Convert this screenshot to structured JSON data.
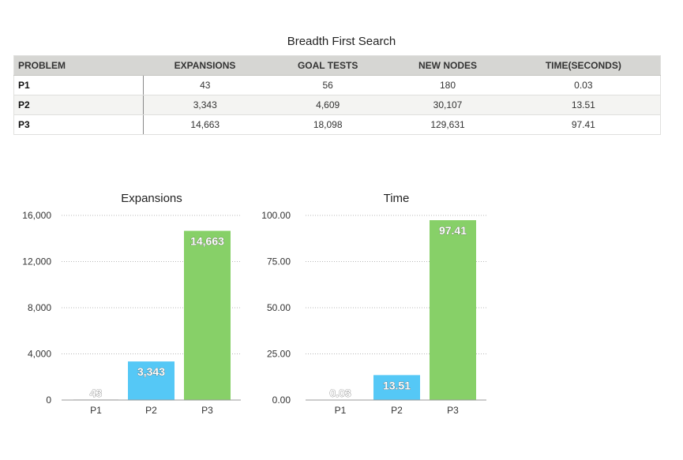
{
  "table": {
    "title": "Breadth First Search",
    "headers": [
      "PROBLEM",
      "EXPANSIONS",
      "GOAL TESTS",
      "NEW NODES",
      "TIME(SECONDS)"
    ],
    "rows": [
      [
        "P1",
        "43",
        "56",
        "180",
        "0.03"
      ],
      [
        "P2",
        "3,343",
        "4,609",
        "30,107",
        "13.51"
      ],
      [
        "P3",
        "14,663",
        "18,098",
        "129,631",
        "97.41"
      ]
    ]
  },
  "chart_data": [
    {
      "type": "bar",
      "title": "Expansions",
      "categories": [
        "P1",
        "P2",
        "P3"
      ],
      "values": [
        43,
        3343,
        14663
      ],
      "value_labels": [
        "43",
        "3,343",
        "14,663"
      ],
      "ylim": [
        0,
        16000
      ],
      "yticks": [
        0,
        4000,
        8000,
        12000,
        16000
      ],
      "ytick_labels": [
        "0",
        "4,000",
        "8,000",
        "12,000",
        "16,000"
      ],
      "colors": [
        "#a6a6a6",
        "#55c8f6",
        "#87d068"
      ],
      "grid": true
    },
    {
      "type": "bar",
      "title": "Time",
      "categories": [
        "P1",
        "P2",
        "P3"
      ],
      "values": [
        0.03,
        13.51,
        97.41
      ],
      "value_labels": [
        "0.03",
        "13.51",
        "97.41"
      ],
      "ylim": [
        0,
        100
      ],
      "yticks": [
        0,
        25,
        50,
        75,
        100
      ],
      "ytick_labels": [
        "0.00",
        "25.00",
        "50.00",
        "75.00",
        "100.00"
      ],
      "colors": [
        "#a6a6a6",
        "#55c8f6",
        "#87d068"
      ],
      "grid": true
    }
  ]
}
